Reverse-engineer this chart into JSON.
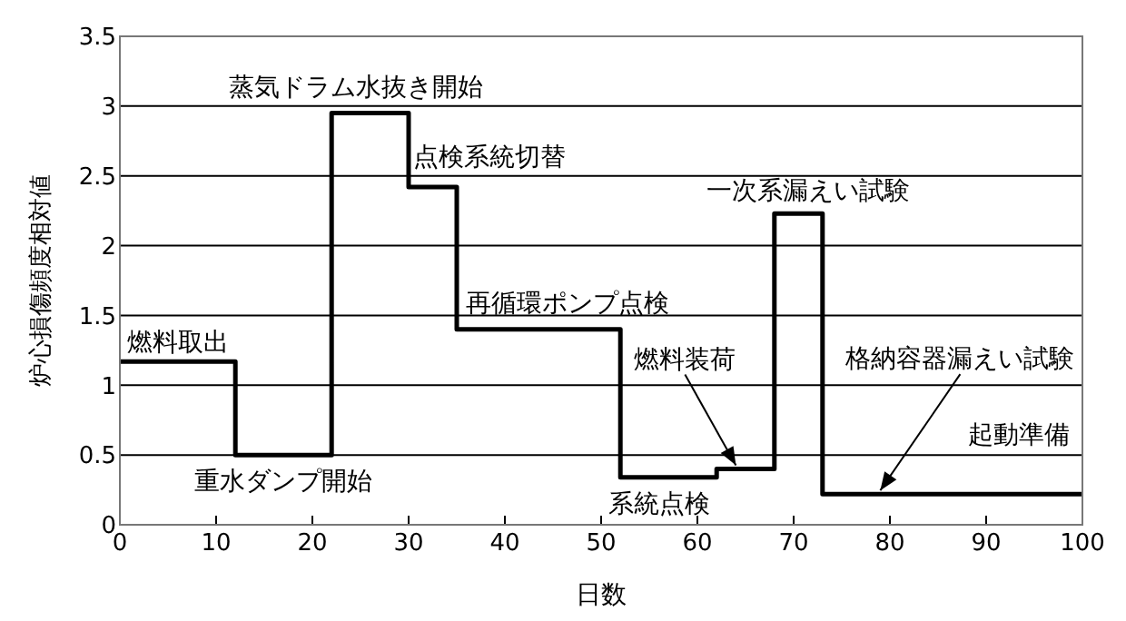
{
  "chart_data": {
    "type": "step",
    "xlabel": "日数",
    "ylabel": "炉心損傷頻度相対値",
    "x": [
      0,
      12,
      22,
      30,
      35,
      52,
      62,
      68,
      73,
      100
    ],
    "series": [
      {
        "color": "#000000",
        "values": [
          1.17,
          0.5,
          2.95,
          2.42,
          1.4,
          0.34,
          0.4,
          2.23,
          0.22,
          0.22
        ]
      }
    ],
    "xlim": [
      0,
      100
    ],
    "xticks": [
      0,
      10,
      20,
      30,
      40,
      50,
      60,
      70,
      80,
      90,
      100
    ],
    "ylim": [
      0,
      3.5
    ],
    "yticks": [
      0,
      0.5,
      1,
      1.5,
      2,
      2.5,
      3,
      3.5
    ],
    "grid": "y",
    "marker": "none",
    "line_style": "solid",
    "annotations": [
      {
        "text": "燃料取出",
        "x": 6,
        "y": 1.17
      },
      {
        "text": "蒸気ドラム水抜き開始",
        "x": 24.5,
        "y": 2.95
      },
      {
        "text": "点検系統切替",
        "x": 32,
        "y": 2.42
      },
      {
        "text": "再循環ポンプ点検",
        "x": 46.5,
        "y": 1.4
      },
      {
        "text": "重水ダンプ開始",
        "x": 17,
        "y": 0.5
      },
      {
        "text": "系統点検",
        "x": 56,
        "y": 0.34
      },
      {
        "text": "燃料装荷",
        "x": 64,
        "y": 0.4
      },
      {
        "text": "一次系漏えい試験",
        "x": 71.5,
        "y": 2.23
      },
      {
        "text": "格納容器漏えい試験",
        "x": 79,
        "y": 0.22
      },
      {
        "text": "起動準備",
        "x": 93,
        "y": 0.22
      }
    ]
  }
}
